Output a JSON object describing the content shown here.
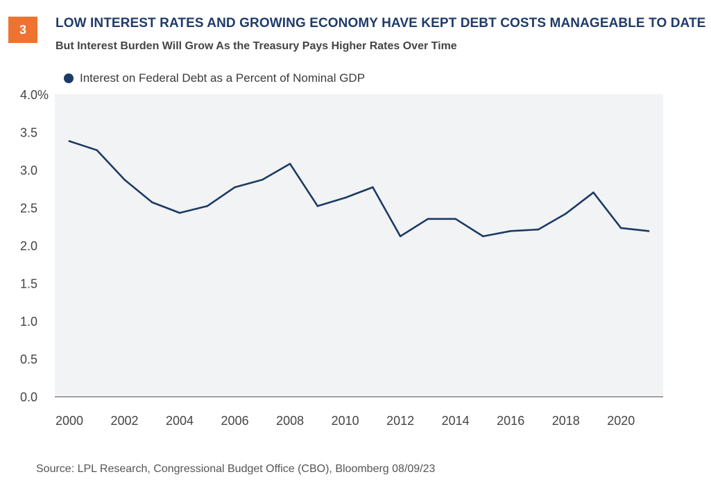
{
  "figure": {
    "number": "3",
    "title": "LOW INTEREST RATES AND GROWING ECONOMY HAVE KEPT DEBT COSTS MANAGEABLE TO DATE",
    "subtitle": "But Interest Burden Will Grow As the Treasury Pays Higher Rates Over Time",
    "source": "Source: LPL Research, Congressional Budget Office (CBO), Bloomberg 08/09/23"
  },
  "colors": {
    "badge": "#ee7330",
    "title": "#1f3b6b",
    "series": "#1b3a64",
    "plot_bg": "#f2f3f5",
    "axis": "#555555"
  },
  "chart_data": {
    "type": "line",
    "title": "LOW INTEREST RATES AND GROWING ECONOMY HAVE KEPT DEBT COSTS MANAGEABLE TO DATE",
    "subtitle": "But Interest Burden Will Grow As the Treasury Pays Higher Rates Over Time",
    "xlabel": "",
    "ylabel": "",
    "ylim": [
      0,
      4
    ],
    "xlim": [
      2000,
      2021
    ],
    "y_ticks": [
      "4.0%",
      "3.5",
      "3.0",
      "2.5",
      "2.0",
      "1.5",
      "1.0",
      "0.5",
      "0.0"
    ],
    "y_tick_values": [
      4.0,
      3.5,
      3.0,
      2.5,
      2.0,
      1.5,
      1.0,
      0.5,
      0.0
    ],
    "x_ticks": [
      "2000",
      "2002",
      "2004",
      "2006",
      "2008",
      "2010",
      "2012",
      "2014",
      "2016",
      "2018",
      "2020"
    ],
    "x_tick_values": [
      2000,
      2002,
      2004,
      2006,
      2008,
      2010,
      2012,
      2014,
      2016,
      2018,
      2020
    ],
    "legend": "top-left",
    "grid": false,
    "series": [
      {
        "name": "Interest on Federal Debt as a Percent of Nominal GDP",
        "x": [
          2000,
          2001,
          2002,
          2003,
          2004,
          2005,
          2006,
          2007,
          2008,
          2009,
          2010,
          2011,
          2012,
          2013,
          2014,
          2015,
          2016,
          2017,
          2018,
          2019,
          2020,
          2021
        ],
        "values": [
          3.38,
          3.26,
          2.87,
          2.57,
          2.43,
          2.52,
          2.77,
          2.87,
          3.08,
          2.52,
          2.63,
          2.77,
          2.12,
          2.35,
          2.35,
          2.12,
          2.19,
          2.21,
          2.42,
          2.7,
          2.23,
          2.19
        ]
      }
    ]
  }
}
